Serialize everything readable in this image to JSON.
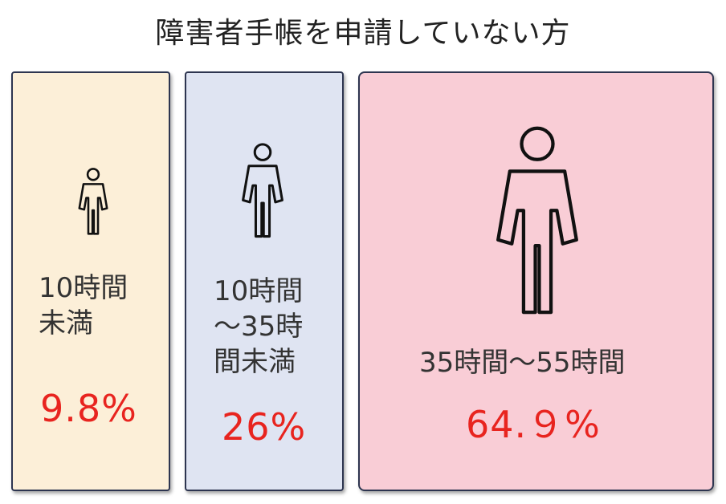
{
  "title": "障害者手帳を申請していない方",
  "chart_data": {
    "type": "pictograph",
    "title": "障害者手帳を申請していない方",
    "categories": [
      "10時間未満",
      "10時間〜35時間未満",
      "35時間〜55時間"
    ],
    "values": [
      9.8,
      26,
      64.9
    ],
    "unit": "%",
    "items": [
      {
        "label_lines": [
          "10時間",
          "未満"
        ],
        "value_text": "9.8%",
        "value": 9.8,
        "fill": "#fcefd8"
      },
      {
        "label_lines": [
          "10時間",
          "〜35時",
          "間未満"
        ],
        "value_text": "26%",
        "value": 26,
        "fill": "#dfe4f2"
      },
      {
        "label_lines": [
          "35時間〜55時間"
        ],
        "value_text": "64.９%",
        "value": 64.9,
        "fill": "#f9cdd6"
      }
    ],
    "colors": {
      "value_text": "#e8241f",
      "border": "#2d3550",
      "icon_stroke": "#111111"
    }
  }
}
